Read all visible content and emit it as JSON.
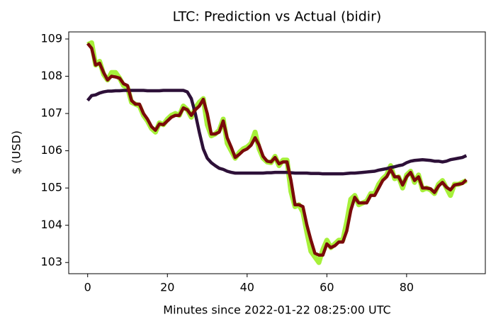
{
  "chart_data": {
    "type": "line",
    "title": "LTC: Prediction vs Actual (bidir)",
    "x_label": "Minutes since 2022-01-22 08:25:00 UTC",
    "y_label": "$ (USD)",
    "x": [
      0,
      1,
      2,
      3,
      4,
      5,
      6,
      7,
      8,
      9,
      10,
      11,
      12,
      13,
      14,
      15,
      16,
      17,
      18,
      19,
      20,
      21,
      22,
      23,
      24,
      25,
      26,
      27,
      28,
      29,
      30,
      31,
      32,
      33,
      34,
      35,
      36,
      37,
      38,
      39,
      40,
      41,
      42,
      43,
      44,
      45,
      46,
      47,
      48,
      49,
      50,
      51,
      52,
      53,
      54,
      55,
      56,
      57,
      58,
      59,
      60,
      61,
      62,
      63,
      64,
      65,
      66,
      67,
      68,
      69,
      70,
      71,
      72,
      73,
      74,
      75,
      76,
      77,
      78,
      79,
      80,
      81,
      82,
      83,
      84,
      85,
      86,
      87,
      88,
      89,
      90,
      91,
      92,
      93,
      94,
      95
    ],
    "series": [
      {
        "color": "#a6f03a",
        "values": [
          108.85,
          108.9,
          108.3,
          108.4,
          108.05,
          107.9,
          108.1,
          108.1,
          107.95,
          107.75,
          107.7,
          107.3,
          107.25,
          107.2,
          106.95,
          106.8,
          106.6,
          106.5,
          106.75,
          106.7,
          106.85,
          106.95,
          107.0,
          106.95,
          107.2,
          107.1,
          106.9,
          107.15,
          107.3,
          107.4,
          106.7,
          106.4,
          106.45,
          106.55,
          106.85,
          106.2,
          106.0,
          105.8,
          105.95,
          106.05,
          106.1,
          106.2,
          106.5,
          106.05,
          105.8,
          105.7,
          105.68,
          105.85,
          105.6,
          105.75,
          105.75,
          104.9,
          104.5,
          104.55,
          104.35,
          103.8,
          103.3,
          103.15,
          103.0,
          103.35,
          103.6,
          103.4,
          103.5,
          103.6,
          103.6,
          104.1,
          104.7,
          104.8,
          104.55,
          104.6,
          104.65,
          104.85,
          104.85,
          105.1,
          105.25,
          105.35,
          105.6,
          105.25,
          105.3,
          105.0,
          105.35,
          105.45,
          105.15,
          105.35,
          104.95,
          105.0,
          104.95,
          104.85,
          105.1,
          105.2,
          105.0,
          104.8,
          105.1,
          105.1,
          105.15,
          105.2
        ]
      },
      {
        "color": "#2d1038",
        "values": [
          107.35,
          107.48,
          107.5,
          107.55,
          107.58,
          107.6,
          107.6,
          107.61,
          107.61,
          107.62,
          107.62,
          107.62,
          107.62,
          107.62,
          107.62,
          107.61,
          107.61,
          107.61,
          107.61,
          107.62,
          107.62,
          107.62,
          107.62,
          107.62,
          107.62,
          107.58,
          107.4,
          107.0,
          106.5,
          106.05,
          105.8,
          105.68,
          105.6,
          105.53,
          105.5,
          105.45,
          105.42,
          105.4,
          105.4,
          105.4,
          105.4,
          105.4,
          105.4,
          105.4,
          105.4,
          105.41,
          105.41,
          105.42,
          105.42,
          105.42,
          105.42,
          105.41,
          105.4,
          105.4,
          105.4,
          105.4,
          105.39,
          105.39,
          105.39,
          105.38,
          105.38,
          105.38,
          105.38,
          105.38,
          105.38,
          105.39,
          105.4,
          105.4,
          105.41,
          105.42,
          105.43,
          105.44,
          105.45,
          105.48,
          105.5,
          105.52,
          105.55,
          105.57,
          105.6,
          105.62,
          105.68,
          105.72,
          105.74,
          105.75,
          105.76,
          105.75,
          105.74,
          105.72,
          105.72,
          105.7,
          105.72,
          105.76,
          105.78,
          105.8,
          105.82,
          105.87
        ]
      },
      {
        "color": "#7a0a0a",
        "values": [
          108.88,
          108.75,
          108.3,
          108.35,
          108.1,
          107.9,
          108.0,
          107.98,
          107.95,
          107.8,
          107.75,
          107.35,
          107.25,
          107.25,
          107.0,
          106.85,
          106.65,
          106.55,
          106.72,
          106.7,
          106.8,
          106.9,
          106.95,
          106.95,
          107.15,
          107.1,
          106.95,
          107.1,
          107.2,
          107.38,
          107.0,
          106.45,
          106.45,
          106.5,
          106.8,
          106.35,
          106.1,
          105.82,
          105.9,
          106.0,
          106.05,
          106.15,
          106.35,
          106.15,
          105.85,
          105.72,
          105.7,
          105.82,
          105.65,
          105.7,
          105.7,
          105.2,
          104.55,
          104.55,
          104.5,
          104.0,
          103.6,
          103.25,
          103.2,
          103.2,
          103.5,
          103.4,
          103.45,
          103.55,
          103.55,
          103.85,
          104.4,
          104.75,
          104.6,
          104.6,
          104.6,
          104.8,
          104.8,
          105.0,
          105.2,
          105.3,
          105.5,
          105.3,
          105.3,
          105.08,
          105.3,
          105.42,
          105.2,
          105.3,
          105.0,
          105.0,
          104.98,
          104.88,
          105.05,
          105.15,
          105.02,
          104.95,
          105.08,
          105.1,
          105.12,
          105.22
        ]
      }
    ],
    "xlim": [
      -4.75,
      99.75
    ],
    "xticks": [
      0,
      20,
      40,
      60,
      80
    ],
    "ylim": [
      102.7,
      109.19
    ],
    "yticks": [
      103,
      104,
      105,
      106,
      107,
      108,
      109
    ]
  }
}
